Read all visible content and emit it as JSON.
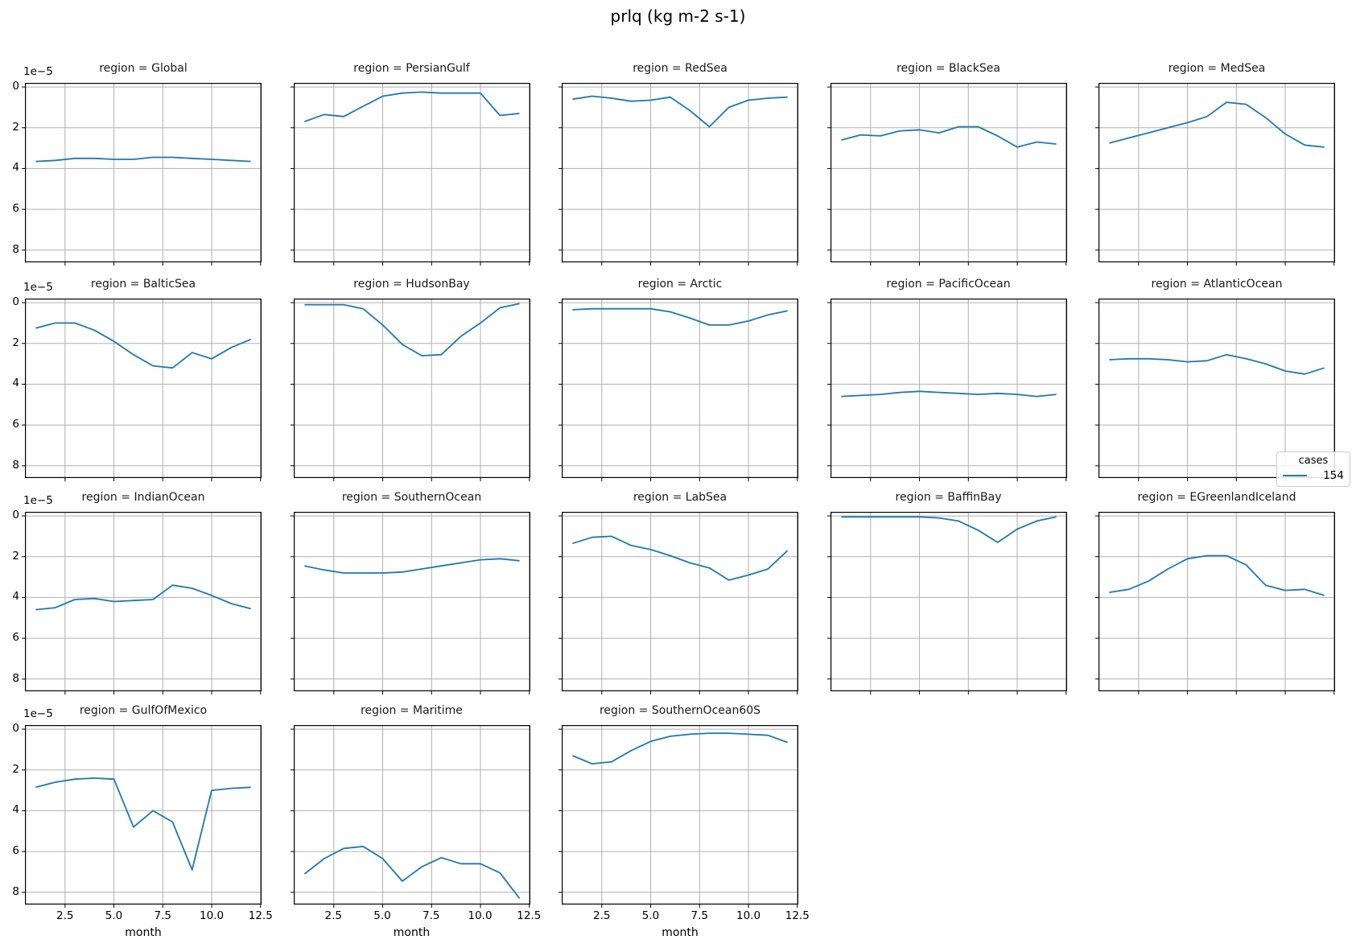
{
  "figure": {
    "title": "prlq (kg m-2 s-1)"
  },
  "legend": {
    "title": "cases",
    "entries": [
      {
        "label": "154",
        "color": "#1f77b4"
      }
    ]
  },
  "axes": {
    "xlabel": "month",
    "x_ticks": [
      2.5,
      5.0,
      7.5,
      10.0,
      12.5
    ],
    "x_tick_labels": [
      "2.5",
      "5.0",
      "7.5",
      "10.0",
      "12.5"
    ],
    "y_ticks": [
      0,
      2,
      4,
      6,
      8
    ],
    "y_tick_labels": [
      "0",
      "2",
      "4",
      "6",
      "8"
    ],
    "y_offset_text": "1e−5",
    "xlim": [
      0.45,
      12.55
    ],
    "ylim_top": -0.2,
    "ylim_bottom": 8.6,
    "y_inverted": true,
    "grid": true,
    "grid_color": "#b0b0b0"
  },
  "chart_data": {
    "type": "line",
    "title": "prlq (kg m-2 s-1)",
    "xlabel": "month",
    "value_units": "1e-5 kg m-2 s-1 (y axis inverted, 0 at top)",
    "line_color": "#1f77b4",
    "legend_position": "right, between row 2 and row 3",
    "x": [
      1,
      2,
      3,
      4,
      5,
      6,
      7,
      8,
      9,
      10,
      11,
      12
    ],
    "facet_title_prefix": "region = ",
    "facets": [
      {
        "region": "Global",
        "title": "region = Global",
        "values": [
          3.65,
          3.6,
          3.5,
          3.5,
          3.55,
          3.55,
          3.45,
          3.45,
          3.5,
          3.55,
          3.6,
          3.65
        ]
      },
      {
        "region": "PersianGulf",
        "title": "region = PersianGulf",
        "values": [
          1.7,
          1.35,
          1.45,
          0.95,
          0.45,
          0.3,
          0.25,
          0.3,
          0.3,
          0.3,
          1.4,
          1.3
        ]
      },
      {
        "region": "RedSea",
        "title": "region = RedSea",
        "values": [
          0.6,
          0.45,
          0.55,
          0.7,
          0.65,
          0.5,
          1.15,
          1.95,
          1.0,
          0.65,
          0.55,
          0.5
        ]
      },
      {
        "region": "BlackSea",
        "title": "region = BlackSea",
        "values": [
          2.6,
          2.35,
          2.4,
          2.15,
          2.1,
          2.25,
          1.95,
          1.95,
          2.4,
          2.95,
          2.7,
          2.8
        ]
      },
      {
        "region": "MedSea",
        "title": "region = MedSea",
        "values": [
          2.75,
          2.5,
          2.25,
          2.0,
          1.75,
          1.45,
          0.75,
          0.85,
          1.5,
          2.3,
          2.85,
          2.95
        ]
      },
      {
        "region": "BalticSea",
        "title": "region = BalticSea",
        "values": [
          1.25,
          1.0,
          1.0,
          1.35,
          1.9,
          2.55,
          3.1,
          3.2,
          2.45,
          2.75,
          2.2,
          1.8
        ]
      },
      {
        "region": "HudsonBay",
        "title": "region = HudsonBay",
        "values": [
          0.1,
          0.1,
          0.1,
          0.3,
          1.1,
          2.05,
          2.6,
          2.55,
          1.65,
          1.0,
          0.25,
          0.05
        ]
      },
      {
        "region": "Arctic",
        "title": "region = Arctic",
        "values": [
          0.35,
          0.3,
          0.3,
          0.3,
          0.3,
          0.45,
          0.75,
          1.1,
          1.1,
          0.9,
          0.6,
          0.4
        ]
      },
      {
        "region": "PacificOcean",
        "title": "region = PacificOcean",
        "values": [
          4.6,
          4.55,
          4.5,
          4.4,
          4.35,
          4.4,
          4.45,
          4.5,
          4.45,
          4.5,
          4.6,
          4.5
        ]
      },
      {
        "region": "AtlanticOcean",
        "title": "region = AtlanticOcean",
        "values": [
          2.8,
          2.75,
          2.75,
          2.8,
          2.9,
          2.85,
          2.55,
          2.75,
          3.0,
          3.35,
          3.5,
          3.2
        ]
      },
      {
        "region": "IndianOcean",
        "title": "region = IndianOcean",
        "values": [
          4.6,
          4.5,
          4.1,
          4.05,
          4.2,
          4.15,
          4.1,
          3.4,
          3.55,
          3.9,
          4.3,
          4.55
        ]
      },
      {
        "region": "SouthernOcean",
        "title": "region = SouthernOcean",
        "values": [
          2.45,
          2.65,
          2.8,
          2.8,
          2.8,
          2.75,
          2.6,
          2.45,
          2.3,
          2.15,
          2.1,
          2.2
        ]
      },
      {
        "region": "LabSea",
        "title": "region = LabSea",
        "values": [
          1.35,
          1.05,
          1.0,
          1.45,
          1.65,
          1.95,
          2.3,
          2.55,
          3.15,
          2.9,
          2.6,
          1.7
        ]
      },
      {
        "region": "BaffinBay",
        "title": "region = BaffinBay",
        "values": [
          0.05,
          0.05,
          0.05,
          0.05,
          0.05,
          0.1,
          0.25,
          0.7,
          1.3,
          0.65,
          0.25,
          0.05
        ]
      },
      {
        "region": "EGreenlandIceland",
        "title": "region = EGreenlandIceland",
        "values": [
          3.75,
          3.6,
          3.2,
          2.6,
          2.1,
          1.95,
          1.95,
          2.4,
          3.4,
          3.65,
          3.6,
          3.9
        ]
      },
      {
        "region": "GulfOfMexico",
        "title": "region = GulfOfMexico",
        "values": [
          2.85,
          2.6,
          2.45,
          2.4,
          2.45,
          4.8,
          4.0,
          4.55,
          6.9,
          3.0,
          2.9,
          2.85
        ]
      },
      {
        "region": "Maritime",
        "title": "region = Maritime",
        "values": [
          7.1,
          6.35,
          5.85,
          5.75,
          6.35,
          7.45,
          6.75,
          6.3,
          6.6,
          6.6,
          7.05,
          8.3
        ]
      },
      {
        "region": "SouthernOcean60S",
        "title": "region = SouthernOcean60S",
        "values": [
          1.3,
          1.7,
          1.6,
          1.05,
          0.6,
          0.35,
          0.25,
          0.2,
          0.2,
          0.25,
          0.3,
          0.65
        ]
      }
    ]
  }
}
